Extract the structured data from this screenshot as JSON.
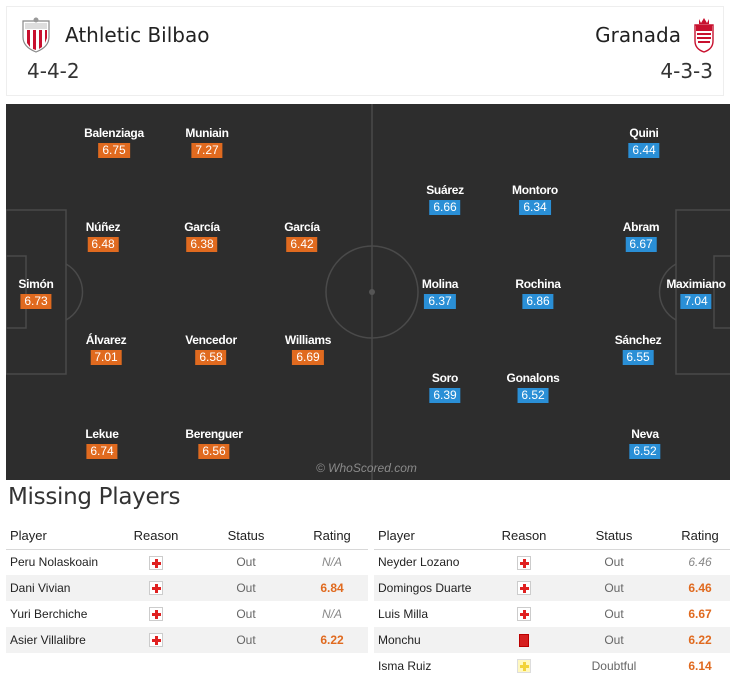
{
  "header": {
    "home": {
      "name": "Athletic Bilbao",
      "formation": "4-4-2",
      "logo_icon": "athletic-bilbao-crest-icon"
    },
    "away": {
      "name": "Granada",
      "formation": "4-3-3",
      "logo_icon": "granada-crest-icon"
    }
  },
  "pitch": {
    "watermark": "© WhoScored.com",
    "home_players": [
      {
        "name": "Balenziaga",
        "rating": "6.75"
      },
      {
        "name": "Muniain",
        "rating": "7.27"
      },
      {
        "name": "Núñez",
        "rating": "6.48"
      },
      {
        "name": "García",
        "rating": "6.38"
      },
      {
        "name": "García",
        "rating": "6.42"
      },
      {
        "name": "Simón",
        "rating": "6.73"
      },
      {
        "name": "Álvarez",
        "rating": "7.01"
      },
      {
        "name": "Vencedor",
        "rating": "6.58"
      },
      {
        "name": "Williams",
        "rating": "6.69"
      },
      {
        "name": "Lekue",
        "rating": "6.74"
      },
      {
        "name": "Berenguer",
        "rating": "6.56"
      }
    ],
    "away_players": [
      {
        "name": "Quini",
        "rating": "6.44"
      },
      {
        "name": "Suárez",
        "rating": "6.66"
      },
      {
        "name": "Montoro",
        "rating": "6.34"
      },
      {
        "name": "Abram",
        "rating": "6.67"
      },
      {
        "name": "Molina",
        "rating": "6.37"
      },
      {
        "name": "Rochina",
        "rating": "6.86"
      },
      {
        "name": "Maximiano",
        "rating": "7.04"
      },
      {
        "name": "Sánchez",
        "rating": "6.55"
      },
      {
        "name": "Soro",
        "rating": "6.39"
      },
      {
        "name": "Gonalons",
        "rating": "6.52"
      },
      {
        "name": "Neva",
        "rating": "6.52"
      }
    ],
    "colors": {
      "home_rating": "#e06a1f",
      "away_rating": "#2a8fd6",
      "pitch": "#2d2d2d"
    }
  },
  "missing": {
    "title": "Missing Players",
    "headers": {
      "player": "Player",
      "reason": "Reason",
      "status": "Status",
      "rating": "Rating"
    },
    "home": [
      {
        "player": "Peru Nolaskoain",
        "reason": "injury",
        "status": "Out",
        "rating": "N/A"
      },
      {
        "player": "Dani Vivian",
        "reason": "injury",
        "status": "Out",
        "rating": "6.84"
      },
      {
        "player": "Yuri Berchiche",
        "reason": "injury",
        "status": "Out",
        "rating": "N/A"
      },
      {
        "player": "Asier Villalibre",
        "reason": "injury",
        "status": "Out",
        "rating": "6.22"
      }
    ],
    "away": [
      {
        "player": "Neyder Lozano",
        "reason": "injury",
        "status": "Out",
        "rating": "6.46"
      },
      {
        "player": "Domingos Duarte",
        "reason": "injury",
        "status": "Out",
        "rating": "6.46"
      },
      {
        "player": "Luis Milla",
        "reason": "injury",
        "status": "Out",
        "rating": "6.67"
      },
      {
        "player": "Monchu",
        "reason": "red-card",
        "status": "Out",
        "rating": "6.22"
      },
      {
        "player": "Isma Ruiz",
        "reason": "doubtful",
        "status": "Doubtful",
        "rating": "6.14"
      }
    ]
  }
}
